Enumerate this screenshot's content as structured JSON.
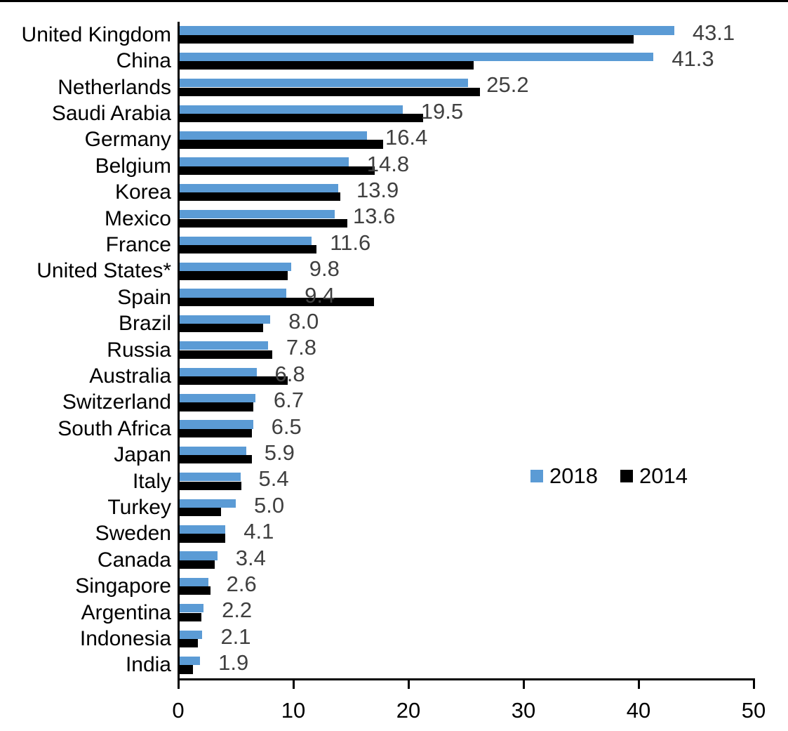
{
  "chart_data": {
    "type": "bar",
    "orientation": "horizontal",
    "title": "",
    "categories": [
      "United Kingdom",
      "China",
      "Netherlands",
      "Saudi Arabia",
      "Germany",
      "Belgium",
      "Korea",
      "Mexico",
      "France",
      "United States*",
      "Spain",
      "Brazil",
      "Russia",
      "Australia",
      "Switzerland",
      "South Africa",
      "Japan",
      "Italy",
      "Turkey",
      "Sweden",
      "Canada",
      "Singapore",
      "Argentina",
      "Indonesia",
      "India"
    ],
    "series": [
      {
        "name": "2018",
        "color": "#5B9BD5",
        "values": [
          43.1,
          41.3,
          25.2,
          19.5,
          16.4,
          14.8,
          13.9,
          13.6,
          11.6,
          9.8,
          9.4,
          8.0,
          7.8,
          6.8,
          6.7,
          6.5,
          5.9,
          5.4,
          5.0,
          4.1,
          3.4,
          2.6,
          2.2,
          2.1,
          1.9
        ]
      },
      {
        "name": "2014",
        "color": "#000000",
        "values": [
          39.6,
          25.7,
          26.2,
          21.3,
          17.8,
          17.1,
          14.1,
          14.7,
          12.0,
          9.5,
          17.0,
          7.4,
          8.2,
          9.5,
          6.5,
          6.4,
          6.4,
          5.5,
          3.7,
          4.1,
          3.2,
          2.8,
          2.0,
          1.7,
          1.3
        ]
      }
    ],
    "data_labels": [
      "43.1",
      "41.3",
      "25.2",
      "19.5",
      "16.4",
      "14.8",
      "13.9",
      "13.6",
      "11.6",
      "9.8",
      "9.4",
      "8.0",
      "7.8",
      "6.8",
      "6.7",
      "6.5",
      "5.9",
      "5.4",
      "5.0",
      "4.1",
      "3.4",
      "2.6",
      "2.2",
      "2.1",
      "1.9"
    ],
    "data_label_color": "#404040",
    "axis_color": "#000000",
    "xlim": [
      0,
      50
    ],
    "xticks": [
      "0",
      "10",
      "20",
      "30",
      "40",
      "50"
    ],
    "grid": false,
    "legend": {
      "position": "middle-right",
      "entries": [
        {
          "label": "2018",
          "color": "#5B9BD5"
        },
        {
          "label": "2014",
          "color": "#000000"
        }
      ]
    }
  }
}
